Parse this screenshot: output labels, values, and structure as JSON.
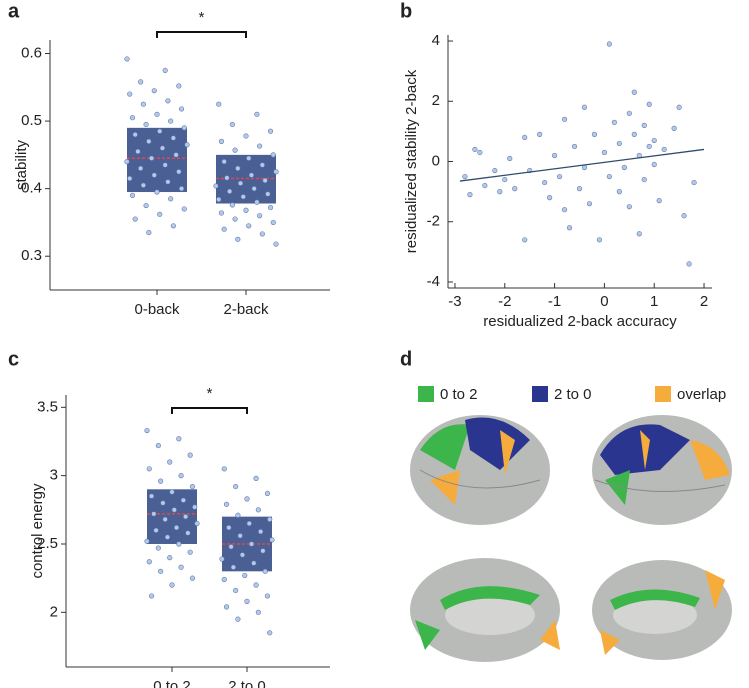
{
  "chart_data": [
    {
      "type": "strip-box",
      "label": "a",
      "ylabel": "stability",
      "categories": [
        "0-back",
        "2-back"
      ],
      "significance": "*",
      "ylim": [
        0.25,
        0.62
      ],
      "yticks": [
        0.3,
        0.4,
        0.5,
        0.6
      ],
      "box_color": "#4a5f94",
      "point_color": "#b4c8ea",
      "median_color": "#e0474c",
      "groups": [
        {
          "q1": 0.395,
          "median": 0.445,
          "q3": 0.49,
          "points": [
            0.592,
            0.575,
            0.558,
            0.552,
            0.545,
            0.54,
            0.53,
            0.525,
            0.518,
            0.51,
            0.505,
            0.5,
            0.495,
            0.49,
            0.485,
            0.48,
            0.475,
            0.47,
            0.465,
            0.46,
            0.455,
            0.45,
            0.445,
            0.44,
            0.435,
            0.43,
            0.425,
            0.42,
            0.415,
            0.41,
            0.405,
            0.4,
            0.395,
            0.39,
            0.385,
            0.375,
            0.37,
            0.362,
            0.355,
            0.345,
            0.335
          ]
        },
        {
          "q1": 0.378,
          "median": 0.415,
          "q3": 0.45,
          "points": [
            0.525,
            0.51,
            0.495,
            0.485,
            0.478,
            0.47,
            0.463,
            0.457,
            0.45,
            0.445,
            0.44,
            0.435,
            0.43,
            0.425,
            0.42,
            0.416,
            0.412,
            0.408,
            0.404,
            0.4,
            0.396,
            0.392,
            0.388,
            0.384,
            0.38,
            0.376,
            0.372,
            0.368,
            0.364,
            0.36,
            0.355,
            0.35,
            0.345,
            0.34,
            0.333,
            0.325,
            0.318
          ]
        }
      ]
    },
    {
      "type": "scatter",
      "label": "b",
      "xlabel": "residualized 2-back accuracy",
      "ylabel": "residualized stability 2-back",
      "xlim": [
        -3.14,
        2.16
      ],
      "ylim": [
        -4.2,
        4.2
      ],
      "xticks": [
        -3,
        -2,
        -1,
        0,
        1,
        2
      ],
      "yticks": [
        -4,
        -2,
        0,
        2,
        4
      ],
      "point_color": "#b4c8ea",
      "line_color": "#2f4a6e",
      "x": [
        -2.8,
        -2.7,
        -2.6,
        -2.5,
        -2.4,
        -2.2,
        -2.1,
        -2.0,
        -1.9,
        -1.8,
        -1.6,
        -1.6,
        -1.5,
        -1.3,
        -1.2,
        -1.1,
        -1.0,
        -0.9,
        -0.8,
        -0.8,
        -0.7,
        -0.6,
        -0.5,
        -0.4,
        -0.4,
        -0.3,
        -0.2,
        -0.1,
        0.0,
        0.1,
        0.1,
        0.2,
        0.3,
        0.3,
        0.4,
        0.5,
        0.5,
        0.6,
        0.6,
        0.7,
        0.7,
        0.8,
        0.8,
        0.9,
        0.9,
        1.0,
        1.0,
        1.1,
        1.2,
        1.4,
        1.5,
        1.6,
        1.7,
        1.8
      ],
      "y": [
        -0.5,
        -1.1,
        0.4,
        0.3,
        -0.8,
        -0.3,
        -1.0,
        -0.6,
        0.1,
        -0.9,
        -2.6,
        0.8,
        -0.3,
        0.9,
        -0.7,
        -1.2,
        0.2,
        -0.5,
        -1.6,
        1.4,
        -2.2,
        0.5,
        -0.9,
        -0.2,
        1.8,
        -1.4,
        0.9,
        -2.6,
        0.3,
        -0.5,
        3.9,
        1.3,
        -1.0,
        0.6,
        -0.2,
        1.6,
        -1.5,
        2.3,
        0.9,
        -2.4,
        0.2,
        1.2,
        -0.6,
        0.5,
        1.9,
        -0.1,
        0.7,
        -1.3,
        0.4,
        1.1,
        1.8,
        -1.8,
        -3.4,
        -0.7
      ],
      "fit": {
        "x": [
          -2.9,
          2.0
        ],
        "y": [
          -0.65,
          0.4
        ]
      }
    },
    {
      "type": "strip-box",
      "label": "c",
      "ylabel": "control energy",
      "categories": [
        "0 to 2",
        "2 to 0"
      ],
      "significance": "*",
      "ylim": [
        1.6,
        3.59
      ],
      "yticks": [
        2,
        2.5,
        3,
        3.5
      ],
      "box_color": "#4a5f94",
      "point_color": "#b4c8ea",
      "median_color": "#e0474c",
      "groups": [
        {
          "q1": 2.5,
          "median": 2.72,
          "q3": 2.9,
          "points": [
            3.33,
            3.27,
            3.22,
            3.15,
            3.1,
            3.05,
            3.0,
            2.96,
            2.92,
            2.88,
            2.85,
            2.82,
            2.8,
            2.77,
            2.75,
            2.72,
            2.7,
            2.68,
            2.65,
            2.62,
            2.6,
            2.58,
            2.55,
            2.52,
            2.5,
            2.47,
            2.44,
            2.4,
            2.37,
            2.33,
            2.3,
            2.25,
            2.2,
            2.12
          ]
        },
        {
          "q1": 2.3,
          "median": 2.5,
          "q3": 2.7,
          "points": [
            3.05,
            2.98,
            2.92,
            2.87,
            2.83,
            2.79,
            2.75,
            2.71,
            2.68,
            2.65,
            2.62,
            2.59,
            2.56,
            2.53,
            2.5,
            2.48,
            2.45,
            2.42,
            2.39,
            2.36,
            2.33,
            2.3,
            2.27,
            2.24,
            2.2,
            2.16,
            2.12,
            2.08,
            2.04,
            2.0,
            1.95,
            1.85
          ]
        }
      ]
    },
    {
      "type": "brain-map",
      "label": "d",
      "legend": [
        {
          "name": "0 to 2",
          "color": "#3cb54a"
        },
        {
          "name": "2 to 0",
          "color": "#2a3590"
        },
        {
          "name": "overlap",
          "color": "#f5ac3c"
        }
      ]
    }
  ]
}
